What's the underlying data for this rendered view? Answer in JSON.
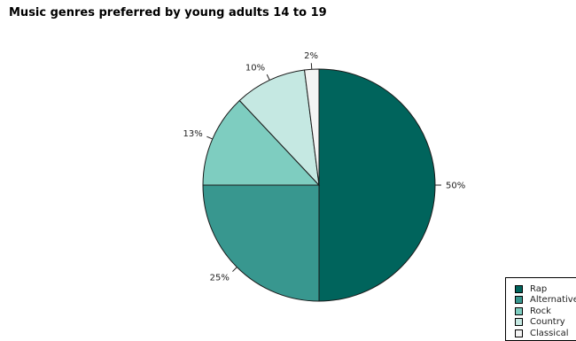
{
  "chart_data": {
    "type": "pie",
    "title": "Music genres preferred by young adults 14 to 19",
    "slices": [
      {
        "label": "Rap",
        "value": 50,
        "display": "50%",
        "color": "#00645c"
      },
      {
        "label": "Alternative",
        "value": 25,
        "display": "25%",
        "color": "#38978f"
      },
      {
        "label": "Rock",
        "value": 13,
        "display": "13%",
        "color": "#7ecdc0"
      },
      {
        "label": "Country",
        "value": 10,
        "display": "10%",
        "color": "#c5e8e2"
      },
      {
        "label": "Classical",
        "value": 2,
        "display": "2%",
        "color": "#f4f4f4"
      }
    ],
    "legend_position": "bottom-right"
  }
}
